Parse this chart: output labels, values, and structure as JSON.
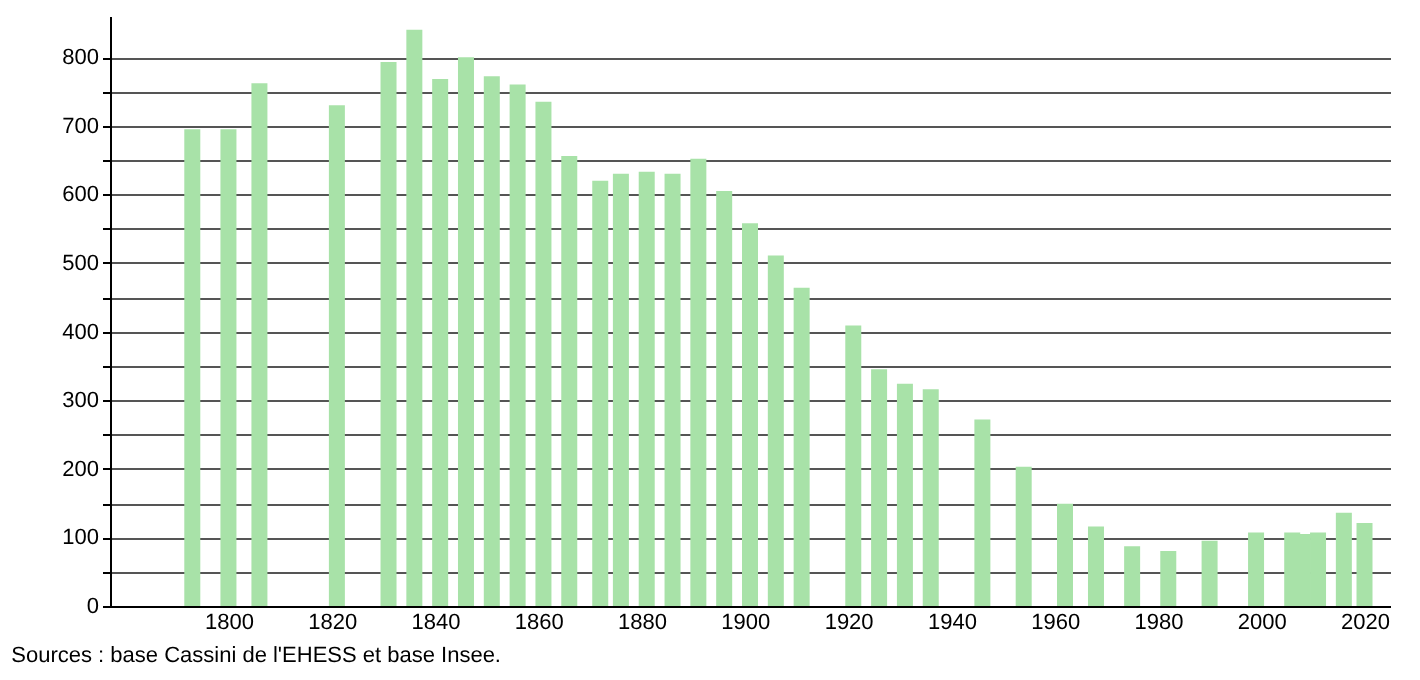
{
  "chart_data": {
    "type": "bar",
    "x": [
      1793,
      1800,
      1806,
      1821,
      1831,
      1836,
      1841,
      1846,
      1851,
      1856,
      1861,
      1866,
      1872,
      1876,
      1881,
      1886,
      1891,
      1896,
      1901,
      1906,
      1911,
      1921,
      1926,
      1931,
      1936,
      1946,
      1954,
      1962,
      1968,
      1975,
      1982,
      1990,
      1999,
      2006,
      2008,
      2011,
      2016,
      2020
    ],
    "values": [
      695,
      695,
      762,
      730,
      793,
      840,
      768,
      800,
      772,
      760,
      735,
      656,
      620,
      630,
      633,
      630,
      652,
      605,
      558,
      511,
      464,
      409,
      345,
      324,
      316,
      272,
      203,
      149,
      116,
      87,
      80,
      95,
      107,
      107,
      105,
      107,
      136,
      121
    ],
    "color": "#a8e2a8",
    "xlim": [
      1779,
      2023
    ],
    "xticks": [
      1800,
      1820,
      1840,
      1860,
      1880,
      1900,
      1920,
      1940,
      1960,
      1980,
      2000,
      2020
    ],
    "ylim": [
      0,
      860
    ],
    "yticks": [
      0,
      {
        "value": 50,
        "label": null
      },
      100,
      {
        "value": 150,
        "label": null
      },
      200,
      {
        "value": 250,
        "label": null
      },
      300,
      {
        "value": 350,
        "label": null
      },
      400,
      {
        "value": 450,
        "label": null
      },
      500,
      {
        "value": 550,
        "label": null
      },
      600,
      {
        "value": 650,
        "label": null
      },
      700,
      {
        "value": 750,
        "label": null
      },
      800
    ],
    "grid": "y",
    "annotations": [
      "Sources : base Cassini de l'EHESS et base Insee."
    ]
  }
}
